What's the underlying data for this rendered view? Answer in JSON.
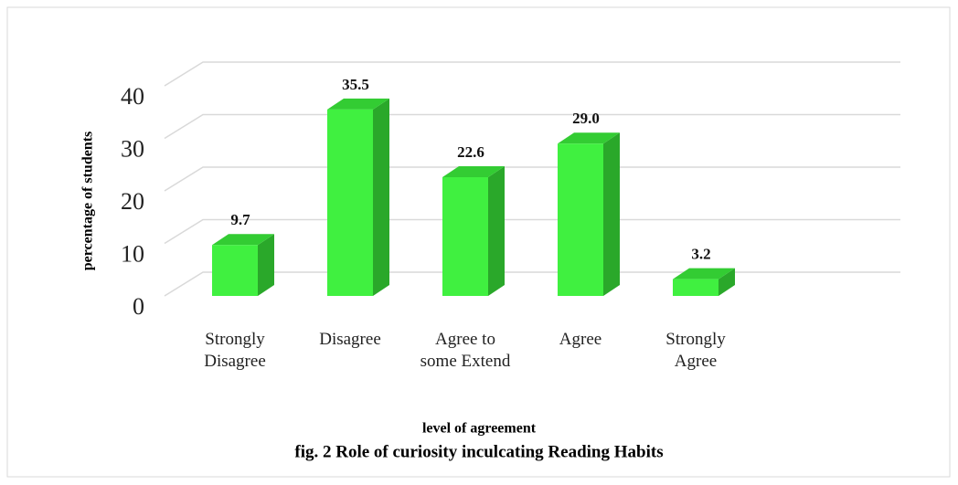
{
  "chart_data": {
    "type": "bar3d",
    "caption": "fig. 2 Role of curiosity inculcating Reading Habits",
    "x_label": "level of agreement",
    "y_label": "percentage of students",
    "categories": [
      "Strongly Disagree",
      "Disagree",
      "Agree to some Extend",
      "Agree",
      "Strongly Agree"
    ],
    "values": [
      9.7,
      35.5,
      22.6,
      29.0,
      3.2
    ],
    "value_labels": [
      "9.7",
      "35.5",
      "22.6",
      "29.0",
      "3.2"
    ],
    "color": "#40f040",
    "ylim": [
      0,
      40
    ],
    "yticks": [
      0,
      10,
      20,
      30,
      40
    ],
    "grid": true
  }
}
